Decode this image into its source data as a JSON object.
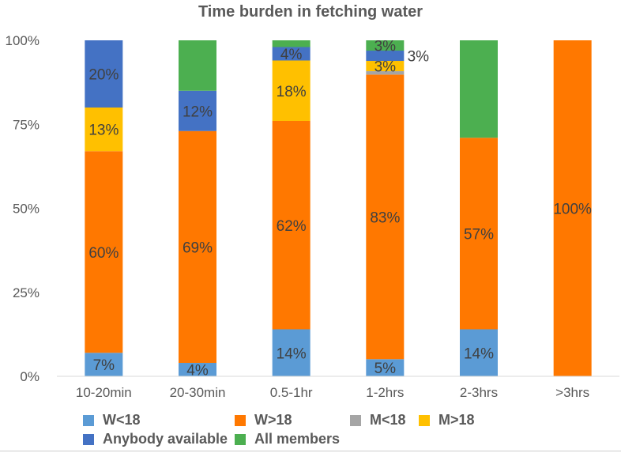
{
  "chart_data": {
    "type": "bar",
    "stacked": "percent",
    "title": "Time burden in fetching water",
    "xlabel": "",
    "ylabel": "",
    "ylim": [
      0,
      100
    ],
    "yticks": [
      "0%",
      "25%",
      "50%",
      "75%",
      "100%"
    ],
    "categories": [
      "10-20min",
      "20-30min",
      "0.5-1hr",
      "1-2hrs",
      "2-3hrs",
      ">3hrs"
    ],
    "grid": false,
    "legend_position": "bottom",
    "series": [
      {
        "name": "W<18",
        "color": "#5B9BD5",
        "values": [
          7,
          4,
          14,
          5,
          14,
          0
        ],
        "labels": [
          "7%",
          "4%",
          "14%",
          "5%",
          "14%",
          ""
        ]
      },
      {
        "name": "W>18",
        "color": "#FF7800",
        "values": [
          60,
          69,
          62,
          83,
          57,
          100
        ],
        "labels": [
          "60%",
          "69%",
          "62%",
          "83%",
          "57%",
          "100%"
        ]
      },
      {
        "name": "M<18",
        "color": "#A5A5A5",
        "values": [
          0,
          0,
          0,
          1,
          0,
          0
        ],
        "labels": [
          "",
          "",
          "",
          "",
          "",
          ""
        ]
      },
      {
        "name": "M>18",
        "color": "#FFC000",
        "values": [
          13,
          0,
          18,
          3,
          0,
          0
        ],
        "labels": [
          "13%",
          "",
          "18%",
          "3%",
          "",
          ""
        ]
      },
      {
        "name": "Anybody available",
        "color": "#4472C4",
        "values": [
          20,
          12,
          4,
          3,
          0,
          0
        ],
        "labels": [
          "20%",
          "12%",
          "4%",
          "3%",
          "",
          ""
        ]
      },
      {
        "name": "All members",
        "color": "#4CAF50",
        "values": [
          0,
          15,
          2,
          3,
          29,
          0
        ],
        "labels": [
          "",
          "",
          "",
          "3%",
          "",
          ""
        ]
      }
    ]
  }
}
